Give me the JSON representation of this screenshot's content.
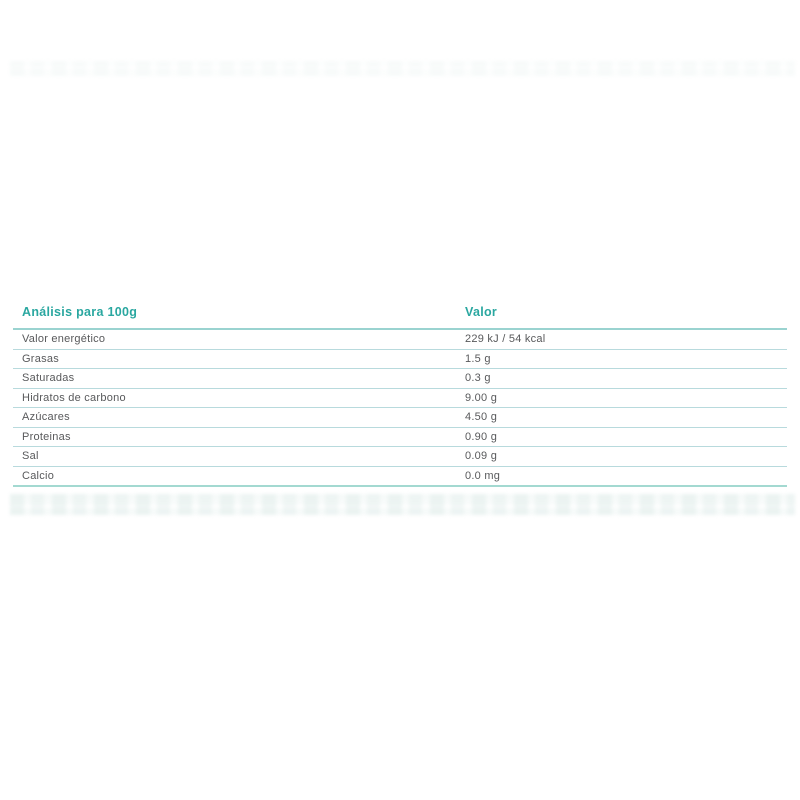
{
  "colors": {
    "accent": "#2AA7A0",
    "divider": "#7DBCC1",
    "text": "#58595B",
    "background": "#FFFFFF"
  },
  "table": {
    "header": {
      "analysis_label": "Análisis para 100g",
      "value_label": "Valor"
    },
    "rows": [
      {
        "label": "Valor energético",
        "value": "229 kJ / 54 kcal"
      },
      {
        "label": "Grasas",
        "value": "1.5 g"
      },
      {
        "label": "Saturadas",
        "value": "0.3 g"
      },
      {
        "label": "Hidratos de carbono",
        "value": "9.00 g"
      },
      {
        "label": "Azúcares",
        "value": "4.50 g"
      },
      {
        "label": "Proteinas",
        "value": "0.90 g"
      },
      {
        "label": "Sal",
        "value": "0.09 g"
      },
      {
        "label": "Calcio",
        "value": "0.0 mg"
      }
    ]
  }
}
